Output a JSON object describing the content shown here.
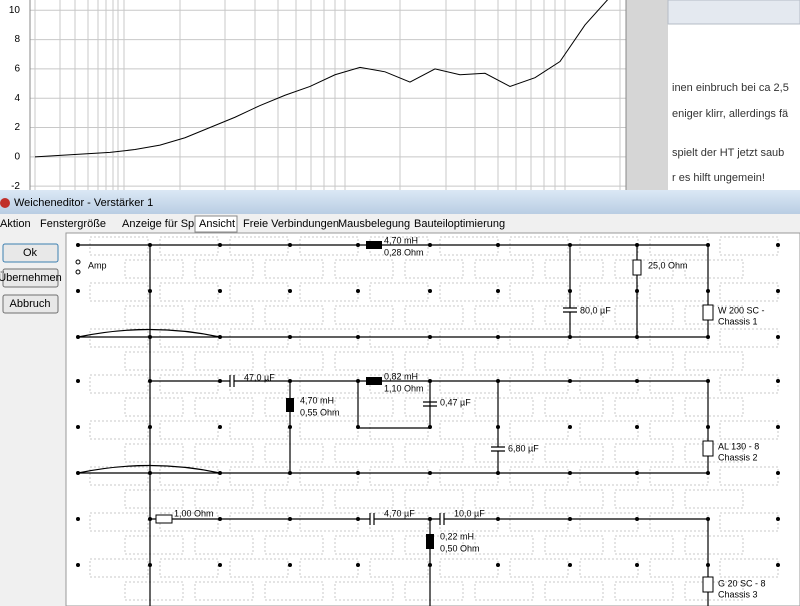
{
  "chart_data": {
    "type": "line",
    "ylim": [
      -2.4,
      10.7
    ],
    "yticks": [
      10,
      8,
      6,
      4,
      2,
      0,
      -2
    ],
    "grid": true,
    "color": "#000000",
    "values": [
      0,
      0.1,
      0.2,
      0.3,
      0.5,
      0.8,
      1.3,
      2.0,
      2.7,
      3.5,
      4.2,
      4.8,
      5.6,
      6.1,
      5.8,
      5.1,
      6.0,
      5.6,
      5.7,
      4.8,
      5.4,
      6.5,
      9.0,
      10.9
    ]
  },
  "browser_text": [
    "inen einbruch bei ca 2,5",
    "eniger klirr, allerdings fä",
    "spielt der HT jetzt saub",
    "r es hilft ungemein!"
  ],
  "window": {
    "title": "Weicheneditor - Verstärker 1",
    "menu": [
      "Aktion",
      "Fenstergröße",
      "Anzeige für Spulen",
      "Ansicht",
      "Freie Verbindungen",
      "Mausbelegung",
      "Bauteiloptimierung"
    ],
    "buttons": [
      "Ok",
      "Übernehmen",
      "Abbruch"
    ],
    "schematic_labels": [
      "Amp",
      "4,70 mH",
      "0,28 Ohm",
      "25,0 Ohm",
      "80,0 µF",
      "W 200 SC -",
      "Chassis 1",
      "47,0 µF",
      "0,82 mH",
      "1,10 Ohm",
      "4,70 mH",
      "0,55 Ohm",
      "0,47 µF",
      "6,80 µF",
      "AL 130 - 8",
      "Chassis 2",
      "1,00 Ohm",
      "4,70 µF",
      "10,0 µF",
      "0,22 mH",
      "0,50 Ohm",
      "G 20 SC - 8",
      "Chassis 3"
    ]
  }
}
